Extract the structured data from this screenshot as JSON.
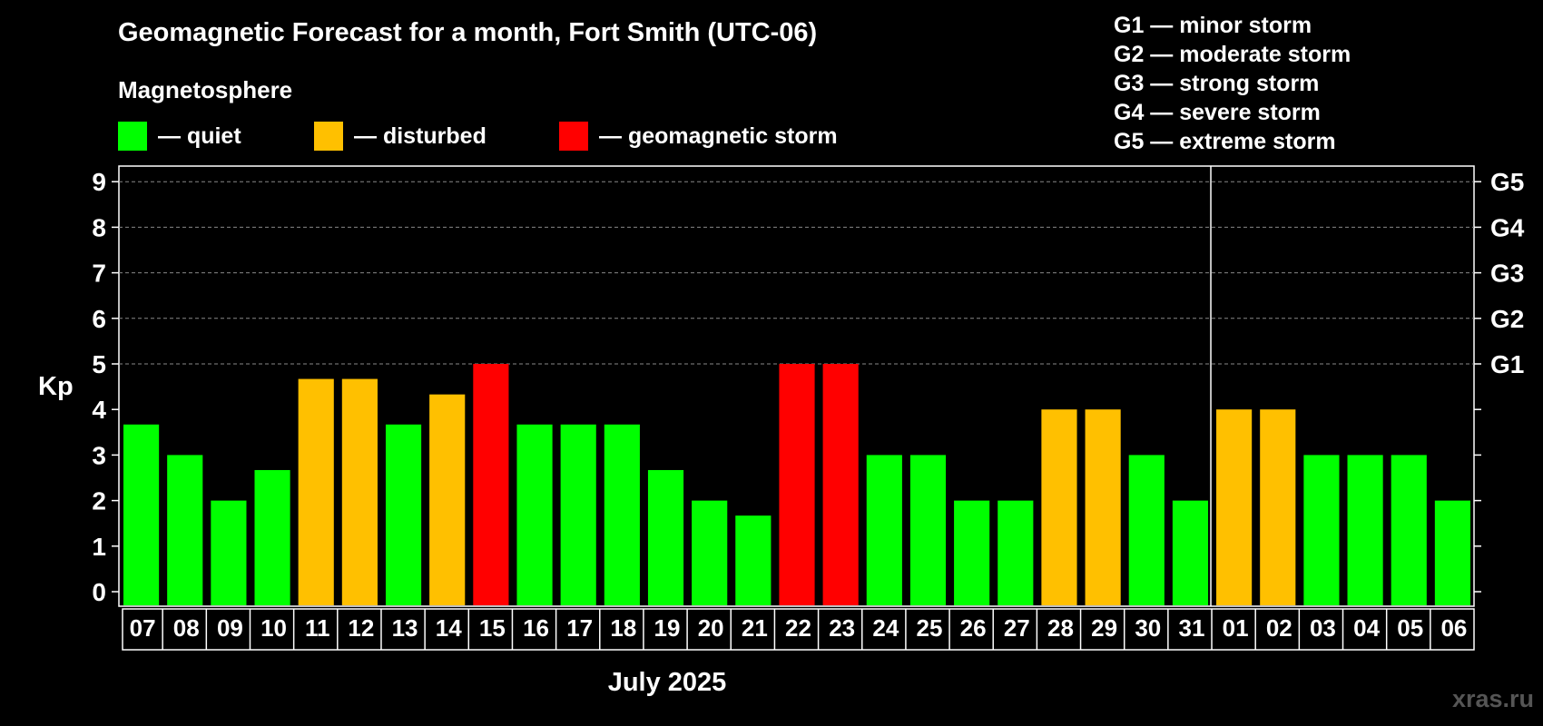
{
  "header": {
    "title": "Geomagnetic Forecast for a month, Fort Smith (UTC-06)",
    "section_label": "Magnetosphere",
    "legend": [
      {
        "label": "— quiet",
        "color": "#00ff00"
      },
      {
        "label": "— disturbed",
        "color": "#ffc000"
      },
      {
        "label": "— geomagnetic storm",
        "color": "#ff0000"
      }
    ],
    "storm_scale": [
      "G1 — minor storm",
      "G2 — moderate storm",
      "G3 — strong storm",
      "G4 — severe storm",
      "G5 — extreme storm"
    ]
  },
  "credit": "xras.ru",
  "chart_data": {
    "type": "bar",
    "xlabel": "July 2025",
    "ylabel": "Kp",
    "ylim": [
      0,
      9
    ],
    "yticks": [
      "0",
      "1",
      "2",
      "3",
      "4",
      "5",
      "6",
      "7",
      "8",
      "9"
    ],
    "right_axis_labels": [
      {
        "value": 5,
        "label": "G1"
      },
      {
        "value": 6,
        "label": "G2"
      },
      {
        "value": 7,
        "label": "G3"
      },
      {
        "value": 8,
        "label": "G4"
      },
      {
        "value": 9,
        "label": "G5"
      }
    ],
    "grid_lines": [
      5,
      6,
      7,
      8,
      9
    ],
    "month_separator_after_index": 24,
    "categories": [
      "07",
      "08",
      "09",
      "10",
      "11",
      "12",
      "13",
      "14",
      "15",
      "16",
      "17",
      "18",
      "19",
      "20",
      "21",
      "22",
      "23",
      "24",
      "25",
      "26",
      "27",
      "28",
      "29",
      "30",
      "31",
      "01",
      "02",
      "03",
      "04",
      "05",
      "06"
    ],
    "values": [
      3.67,
      3,
      2,
      2.67,
      4.67,
      4.67,
      3.67,
      4.33,
      5,
      3.67,
      3.67,
      3.67,
      2.67,
      2,
      1.67,
      5,
      5,
      3,
      3,
      2,
      2,
      4,
      4,
      3,
      2,
      4,
      4,
      3,
      3,
      3,
      2
    ],
    "levels": [
      "quiet",
      "quiet",
      "quiet",
      "quiet",
      "disturbed",
      "disturbed",
      "quiet",
      "disturbed",
      "storm",
      "quiet",
      "quiet",
      "quiet",
      "quiet",
      "quiet",
      "quiet",
      "storm",
      "storm",
      "quiet",
      "quiet",
      "quiet",
      "quiet",
      "disturbed",
      "disturbed",
      "quiet",
      "quiet",
      "disturbed",
      "disturbed",
      "quiet",
      "quiet",
      "quiet",
      "quiet"
    ],
    "level_colors": {
      "quiet": "#00ff00",
      "disturbed": "#ffc000",
      "storm": "#ff0000"
    }
  }
}
